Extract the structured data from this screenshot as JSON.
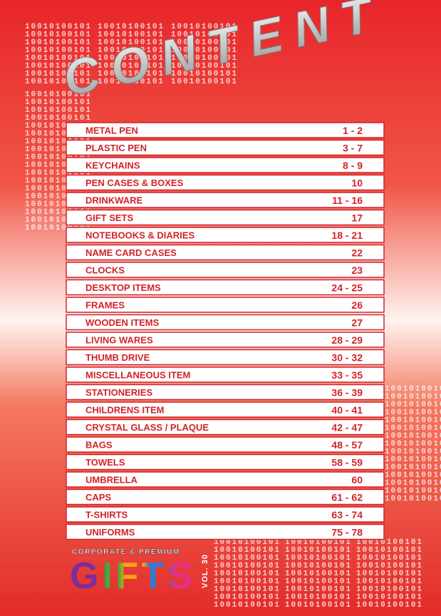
{
  "title": "CONTENT",
  "pattern": "10010100101",
  "items": [
    {
      "name": "METAL PEN",
      "pages": "1 - 2"
    },
    {
      "name": "PLASTIC PEN",
      "pages": "3 - 7"
    },
    {
      "name": "KEYCHAINS",
      "pages": "8 - 9"
    },
    {
      "name": "PEN CASES & BOXES",
      "pages": "10"
    },
    {
      "name": "DRINKWARE",
      "pages": "11 - 16"
    },
    {
      "name": "GIFT SETS",
      "pages": "17"
    },
    {
      "name": "NOTEBOOKS & DIARIES",
      "pages": "18 - 21"
    },
    {
      "name": "NAME CARD CASES",
      "pages": "22"
    },
    {
      "name": "CLOCKS",
      "pages": "23"
    },
    {
      "name": "DESKTOP ITEMS",
      "pages": "24 - 25"
    },
    {
      "name": "FRAMES",
      "pages": "26"
    },
    {
      "name": "WOODEN ITEMS",
      "pages": "27"
    },
    {
      "name": "LIVING WARES",
      "pages": "28 - 29"
    },
    {
      "name": "THUMB DRIVE",
      "pages": "30 - 32"
    },
    {
      "name": "MISCELLANEOUS ITEM",
      "pages": "33 - 35"
    },
    {
      "name": "STATIONERIES",
      "pages": "36 - 39"
    },
    {
      "name": "CHILDRENS ITEM",
      "pages": "40 - 41"
    },
    {
      "name": "CRYSTAL GLASS / PLAQUE",
      "pages": "42 - 47"
    },
    {
      "name": "BAGS",
      "pages": "48 - 57"
    },
    {
      "name": "TOWELS",
      "pages": "58 - 59"
    },
    {
      "name": "UMBRELLA",
      "pages": "60"
    },
    {
      "name": "CAPS",
      "pages": "61 - 62"
    },
    {
      "name": "T-SHIRTS",
      "pages": "63 - 74"
    },
    {
      "name": "UNIFORMS",
      "pages": "75 - 78"
    }
  ],
  "footer": {
    "tagline": "CORPORATE & PREMIUM",
    "brand": "GIFTS",
    "volume": "VOL. 30"
  }
}
